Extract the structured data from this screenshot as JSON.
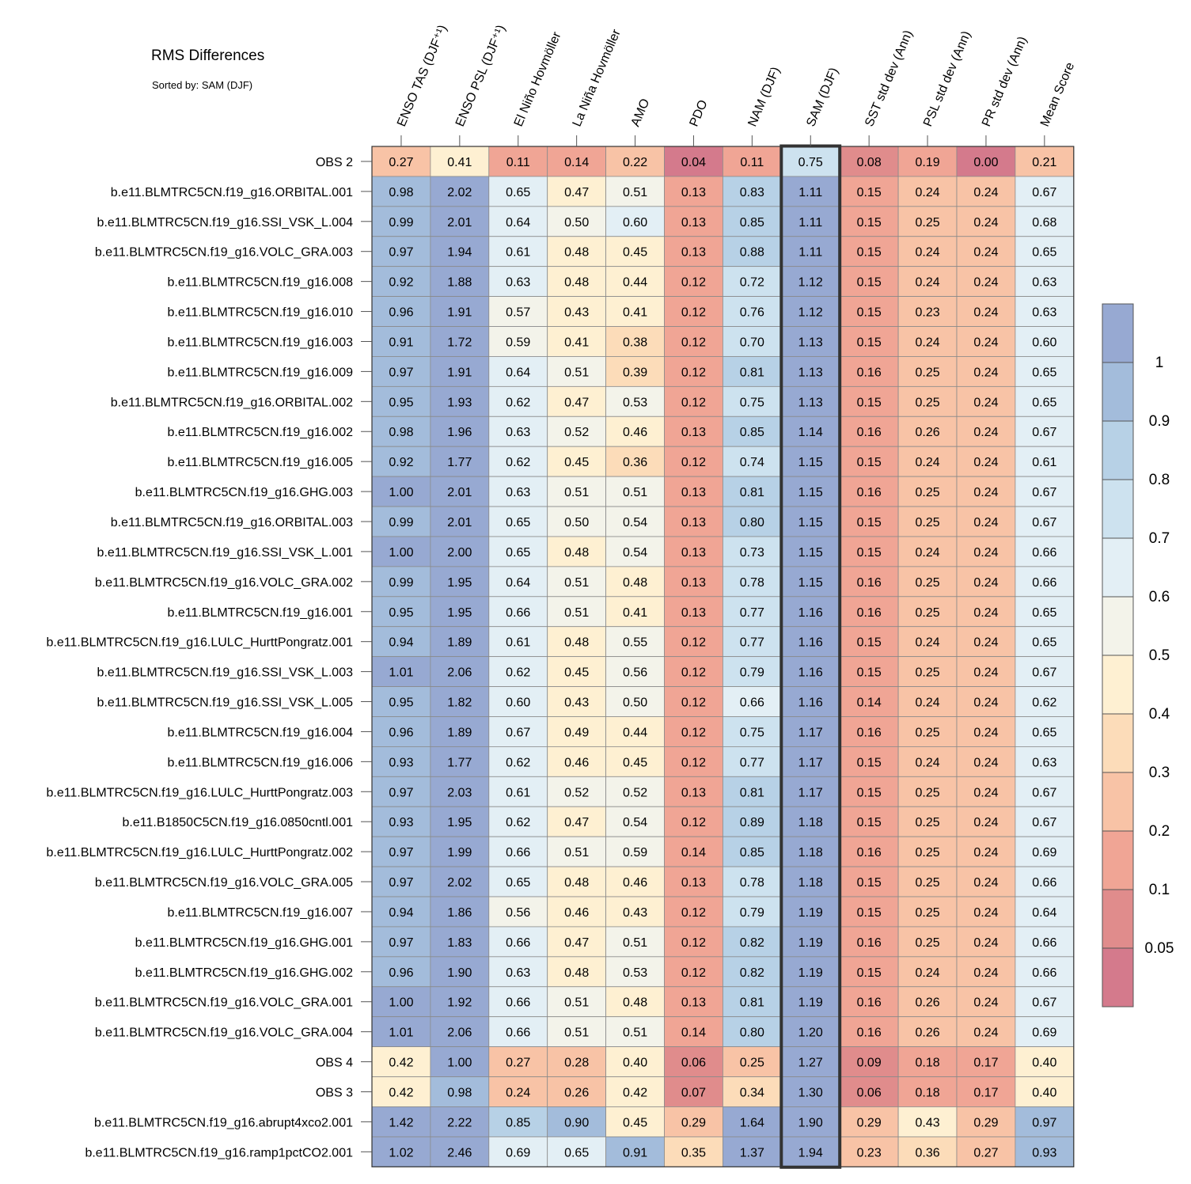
{
  "chart_data": {
    "type": "heatmap",
    "title": "RMS Differences",
    "subtitle": "Sorted by: SAM (DJF)",
    "columns": [
      "ENSO TAS (DJF⁺¹)",
      "ENSO PSL (DJF⁺¹)",
      "El Niño Hovmöller",
      "La Niña Hovmöller",
      "AMO",
      "PDO",
      "NAM (DJF)",
      "SAM (DJF)",
      "SST std dev (Ann)",
      "PSL std dev (Ann)",
      "PR std dev (Ann)",
      "Mean Score"
    ],
    "highlight_column": "SAM (DJF)",
    "rows": [
      {
        "label": "OBS 2",
        "values": [
          "0.27",
          "0.41",
          "0.11",
          "0.14",
          "0.22",
          "0.04",
          "0.11",
          "0.75",
          "0.08",
          "0.19",
          "0.00",
          "0.21"
        ]
      },
      {
        "label": "b.e11.BLMTRC5CN.f19_g16.ORBITAL.001",
        "values": [
          "0.98",
          "2.02",
          "0.65",
          "0.47",
          "0.51",
          "0.13",
          "0.83",
          "1.11",
          "0.15",
          "0.24",
          "0.24",
          "0.67"
        ]
      },
      {
        "label": "b.e11.BLMTRC5CN.f19_g16.SSI_VSK_L.004",
        "values": [
          "0.99",
          "2.01",
          "0.64",
          "0.50",
          "0.60",
          "0.13",
          "0.85",
          "1.11",
          "0.15",
          "0.25",
          "0.24",
          "0.68"
        ]
      },
      {
        "label": "b.e11.BLMTRC5CN.f19_g16.VOLC_GRA.003",
        "values": [
          "0.97",
          "1.94",
          "0.61",
          "0.48",
          "0.45",
          "0.13",
          "0.88",
          "1.11",
          "0.15",
          "0.24",
          "0.24",
          "0.65"
        ]
      },
      {
        "label": "b.e11.BLMTRC5CN.f19_g16.008",
        "values": [
          "0.92",
          "1.88",
          "0.63",
          "0.48",
          "0.44",
          "0.12",
          "0.72",
          "1.12",
          "0.15",
          "0.24",
          "0.24",
          "0.63"
        ]
      },
      {
        "label": "b.e11.BLMTRC5CN.f19_g16.010",
        "values": [
          "0.96",
          "1.91",
          "0.57",
          "0.43",
          "0.41",
          "0.12",
          "0.76",
          "1.12",
          "0.15",
          "0.23",
          "0.24",
          "0.63"
        ]
      },
      {
        "label": "b.e11.BLMTRC5CN.f19_g16.003",
        "values": [
          "0.91",
          "1.72",
          "0.59",
          "0.41",
          "0.38",
          "0.12",
          "0.70",
          "1.13",
          "0.15",
          "0.24",
          "0.24",
          "0.60"
        ]
      },
      {
        "label": "b.e11.BLMTRC5CN.f19_g16.009",
        "values": [
          "0.97",
          "1.91",
          "0.64",
          "0.51",
          "0.39",
          "0.12",
          "0.81",
          "1.13",
          "0.16",
          "0.25",
          "0.24",
          "0.65"
        ]
      },
      {
        "label": "b.e11.BLMTRC5CN.f19_g16.ORBITAL.002",
        "values": [
          "0.95",
          "1.93",
          "0.62",
          "0.47",
          "0.53",
          "0.12",
          "0.75",
          "1.13",
          "0.15",
          "0.25",
          "0.24",
          "0.65"
        ]
      },
      {
        "label": "b.e11.BLMTRC5CN.f19_g16.002",
        "values": [
          "0.98",
          "1.96",
          "0.63",
          "0.52",
          "0.46",
          "0.13",
          "0.85",
          "1.14",
          "0.16",
          "0.26",
          "0.24",
          "0.67"
        ]
      },
      {
        "label": "b.e11.BLMTRC5CN.f19_g16.005",
        "values": [
          "0.92",
          "1.77",
          "0.62",
          "0.45",
          "0.36",
          "0.12",
          "0.74",
          "1.15",
          "0.15",
          "0.24",
          "0.24",
          "0.61"
        ]
      },
      {
        "label": "b.e11.BLMTRC5CN.f19_g16.GHG.003",
        "values": [
          "1.00",
          "2.01",
          "0.63",
          "0.51",
          "0.51",
          "0.13",
          "0.81",
          "1.15",
          "0.16",
          "0.25",
          "0.24",
          "0.67"
        ]
      },
      {
        "label": "b.e11.BLMTRC5CN.f19_g16.ORBITAL.003",
        "values": [
          "0.99",
          "2.01",
          "0.65",
          "0.50",
          "0.54",
          "0.13",
          "0.80",
          "1.15",
          "0.15",
          "0.25",
          "0.24",
          "0.67"
        ]
      },
      {
        "label": "b.e11.BLMTRC5CN.f19_g16.SSI_VSK_L.001",
        "values": [
          "1.00",
          "2.00",
          "0.65",
          "0.48",
          "0.54",
          "0.13",
          "0.73",
          "1.15",
          "0.15",
          "0.24",
          "0.24",
          "0.66"
        ]
      },
      {
        "label": "b.e11.BLMTRC5CN.f19_g16.VOLC_GRA.002",
        "values": [
          "0.99",
          "1.95",
          "0.64",
          "0.51",
          "0.48",
          "0.13",
          "0.78",
          "1.15",
          "0.16",
          "0.25",
          "0.24",
          "0.66"
        ]
      },
      {
        "label": "b.e11.BLMTRC5CN.f19_g16.001",
        "values": [
          "0.95",
          "1.95",
          "0.66",
          "0.51",
          "0.41",
          "0.13",
          "0.77",
          "1.16",
          "0.16",
          "0.25",
          "0.24",
          "0.65"
        ]
      },
      {
        "label": "b.e11.BLMTRC5CN.f19_g16.LULC_HurttPongratz.001",
        "values": [
          "0.94",
          "1.89",
          "0.61",
          "0.48",
          "0.55",
          "0.12",
          "0.77",
          "1.16",
          "0.15",
          "0.24",
          "0.24",
          "0.65"
        ]
      },
      {
        "label": "b.e11.BLMTRC5CN.f19_g16.SSI_VSK_L.003",
        "values": [
          "1.01",
          "2.06",
          "0.62",
          "0.45",
          "0.56",
          "0.12",
          "0.79",
          "1.16",
          "0.15",
          "0.25",
          "0.24",
          "0.67"
        ]
      },
      {
        "label": "b.e11.BLMTRC5CN.f19_g16.SSI_VSK_L.005",
        "values": [
          "0.95",
          "1.82",
          "0.60",
          "0.43",
          "0.50",
          "0.12",
          "0.66",
          "1.16",
          "0.14",
          "0.24",
          "0.24",
          "0.62"
        ]
      },
      {
        "label": "b.e11.BLMTRC5CN.f19_g16.004",
        "values": [
          "0.96",
          "1.89",
          "0.67",
          "0.49",
          "0.44",
          "0.12",
          "0.75",
          "1.17",
          "0.16",
          "0.25",
          "0.24",
          "0.65"
        ]
      },
      {
        "label": "b.e11.BLMTRC5CN.f19_g16.006",
        "values": [
          "0.93",
          "1.77",
          "0.62",
          "0.46",
          "0.45",
          "0.12",
          "0.77",
          "1.17",
          "0.15",
          "0.24",
          "0.24",
          "0.63"
        ]
      },
      {
        "label": "b.e11.BLMTRC5CN.f19_g16.LULC_HurttPongratz.003",
        "values": [
          "0.97",
          "2.03",
          "0.61",
          "0.52",
          "0.52",
          "0.13",
          "0.81",
          "1.17",
          "0.15",
          "0.25",
          "0.24",
          "0.67"
        ]
      },
      {
        "label": "b.e11.B1850C5CN.f19_g16.0850cntl.001",
        "values": [
          "0.93",
          "1.95",
          "0.62",
          "0.47",
          "0.54",
          "0.12",
          "0.89",
          "1.18",
          "0.15",
          "0.25",
          "0.24",
          "0.67"
        ]
      },
      {
        "label": "b.e11.BLMTRC5CN.f19_g16.LULC_HurttPongratz.002",
        "values": [
          "0.97",
          "1.99",
          "0.66",
          "0.51",
          "0.59",
          "0.14",
          "0.85",
          "1.18",
          "0.16",
          "0.25",
          "0.24",
          "0.69"
        ]
      },
      {
        "label": "b.e11.BLMTRC5CN.f19_g16.VOLC_GRA.005",
        "values": [
          "0.97",
          "2.02",
          "0.65",
          "0.48",
          "0.46",
          "0.13",
          "0.78",
          "1.18",
          "0.15",
          "0.25",
          "0.24",
          "0.66"
        ]
      },
      {
        "label": "b.e11.BLMTRC5CN.f19_g16.007",
        "values": [
          "0.94",
          "1.86",
          "0.56",
          "0.46",
          "0.43",
          "0.12",
          "0.79",
          "1.19",
          "0.15",
          "0.25",
          "0.24",
          "0.64"
        ]
      },
      {
        "label": "b.e11.BLMTRC5CN.f19_g16.GHG.001",
        "values": [
          "0.97",
          "1.83",
          "0.66",
          "0.47",
          "0.51",
          "0.12",
          "0.82",
          "1.19",
          "0.16",
          "0.25",
          "0.24",
          "0.66"
        ]
      },
      {
        "label": "b.e11.BLMTRC5CN.f19_g16.GHG.002",
        "values": [
          "0.96",
          "1.90",
          "0.63",
          "0.48",
          "0.53",
          "0.12",
          "0.82",
          "1.19",
          "0.15",
          "0.24",
          "0.24",
          "0.66"
        ]
      },
      {
        "label": "b.e11.BLMTRC5CN.f19_g16.VOLC_GRA.001",
        "values": [
          "1.00",
          "1.92",
          "0.66",
          "0.51",
          "0.48",
          "0.13",
          "0.81",
          "1.19",
          "0.16",
          "0.26",
          "0.24",
          "0.67"
        ]
      },
      {
        "label": "b.e11.BLMTRC5CN.f19_g16.VOLC_GRA.004",
        "values": [
          "1.01",
          "2.06",
          "0.66",
          "0.51",
          "0.51",
          "0.14",
          "0.80",
          "1.20",
          "0.16",
          "0.26",
          "0.24",
          "0.69"
        ]
      },
      {
        "label": "OBS 4",
        "values": [
          "0.42",
          "1.00",
          "0.27",
          "0.28",
          "0.40",
          "0.06",
          "0.25",
          "1.27",
          "0.09",
          "0.18",
          "0.17",
          "0.40"
        ]
      },
      {
        "label": "OBS 3",
        "values": [
          "0.42",
          "0.98",
          "0.24",
          "0.26",
          "0.42",
          "0.07",
          "0.34",
          "1.30",
          "0.06",
          "0.18",
          "0.17",
          "0.40"
        ]
      },
      {
        "label": "b.e11.BLMTRC5CN.f19_g16.abrupt4xco2.001",
        "values": [
          "1.42",
          "2.22",
          "0.85",
          "0.90",
          "0.45",
          "0.29",
          "1.64",
          "1.90",
          "0.29",
          "0.43",
          "0.29",
          "0.97"
        ]
      },
      {
        "label": "b.e11.BLMTRC5CN.f19_g16.ramp1pctCO2.001",
        "values": [
          "1.02",
          "2.46",
          "0.69",
          "0.65",
          "0.91",
          "0.35",
          "1.37",
          "1.94",
          "0.23",
          "0.36",
          "0.27",
          "0.93"
        ]
      }
    ],
    "colorbar": {
      "levels": [
        0.05,
        0.1,
        0.2,
        0.3,
        0.4,
        0.5,
        0.6,
        0.7,
        0.8,
        0.9,
        1
      ],
      "tick_labels": [
        "0.05",
        "0.1",
        "0.2",
        "0.3",
        "0.4",
        "0.5",
        "0.6",
        "0.7",
        "0.8",
        "0.9",
        "1"
      ],
      "colors": [
        "#d47a8c",
        "#e08c8c",
        "#f0a595",
        "#f8c3a6",
        "#fcdcb9",
        "#fef0d2",
        "#f3f3ea",
        "#e3eff5",
        "#cde2ef",
        "#b7d1e6",
        "#a3bcdb",
        "#97a9d2"
      ]
    }
  }
}
